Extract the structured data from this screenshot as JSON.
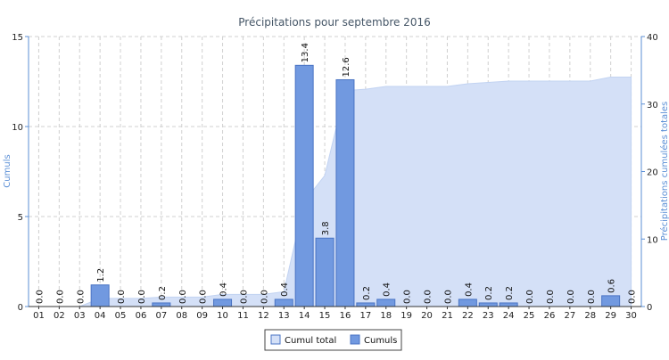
{
  "chart_data": {
    "type": "bar",
    "title": "Précipitations pour septembre 2016",
    "categories": [
      "01",
      "02",
      "03",
      "04",
      "05",
      "06",
      "07",
      "08",
      "09",
      "10",
      "11",
      "12",
      "13",
      "14",
      "15",
      "16",
      "17",
      "18",
      "19",
      "20",
      "21",
      "22",
      "23",
      "24",
      "25",
      "26",
      "27",
      "28",
      "29",
      "30"
    ],
    "series": [
      {
        "name": "Cumuls",
        "kind": "bar",
        "axis": "left",
        "values": [
          0.0,
          0.0,
          0.0,
          1.2,
          0.0,
          0.0,
          0.2,
          0.0,
          0.0,
          0.4,
          0.0,
          0.0,
          0.4,
          13.4,
          3.8,
          12.6,
          0.2,
          0.4,
          0.0,
          0.0,
          0.0,
          0.4,
          0.2,
          0.2,
          0.0,
          0.0,
          0.0,
          0.0,
          0.6,
          0.0
        ],
        "labels": [
          "0.0",
          "0.0",
          "0.0",
          "1.2",
          "0.0",
          "0.0",
          "0.2",
          "0.0",
          "0.0",
          "0.4",
          "0.0",
          "0.0",
          "0.4",
          "13.4",
          "3.8",
          "12.6",
          "0.2",
          "0.4",
          "0.0",
          "0.0",
          "0.0",
          "0.4",
          "0.2",
          "0.2",
          "0.0",
          "0.0",
          "0.0",
          "0.0",
          "0.6",
          "0.0"
        ]
      },
      {
        "name": "Cumul total",
        "kind": "area",
        "axis": "right",
        "values": [
          0.0,
          0.0,
          0.0,
          1.2,
          1.2,
          1.2,
          1.4,
          1.4,
          1.4,
          1.8,
          1.8,
          1.8,
          2.2,
          15.6,
          19.4,
          32.0,
          32.2,
          32.6,
          32.6,
          32.6,
          32.6,
          33.0,
          33.2,
          33.4,
          33.4,
          33.4,
          33.4,
          33.4,
          34.0,
          34.0
        ]
      }
    ],
    "ylabel": "Cumuls",
    "ylim": [
      0,
      15
    ],
    "yticks": [
      0,
      5,
      10,
      15
    ],
    "y2label": "Précipitations cumulées totales",
    "y2lim": [
      0,
      40
    ],
    "y2ticks": [
      0,
      10,
      20,
      30,
      40
    ],
    "grid": true,
    "legend_position": "bottom-center",
    "colors": {
      "bar_fill": "#7199e0",
      "bar_stroke": "#4a74c4",
      "area_fill": "#d4e0f7",
      "area_stroke": "#c2d3f2",
      "grid": "#d0d0d0",
      "axis": "#5b8fd6",
      "title": "#445566"
    }
  }
}
